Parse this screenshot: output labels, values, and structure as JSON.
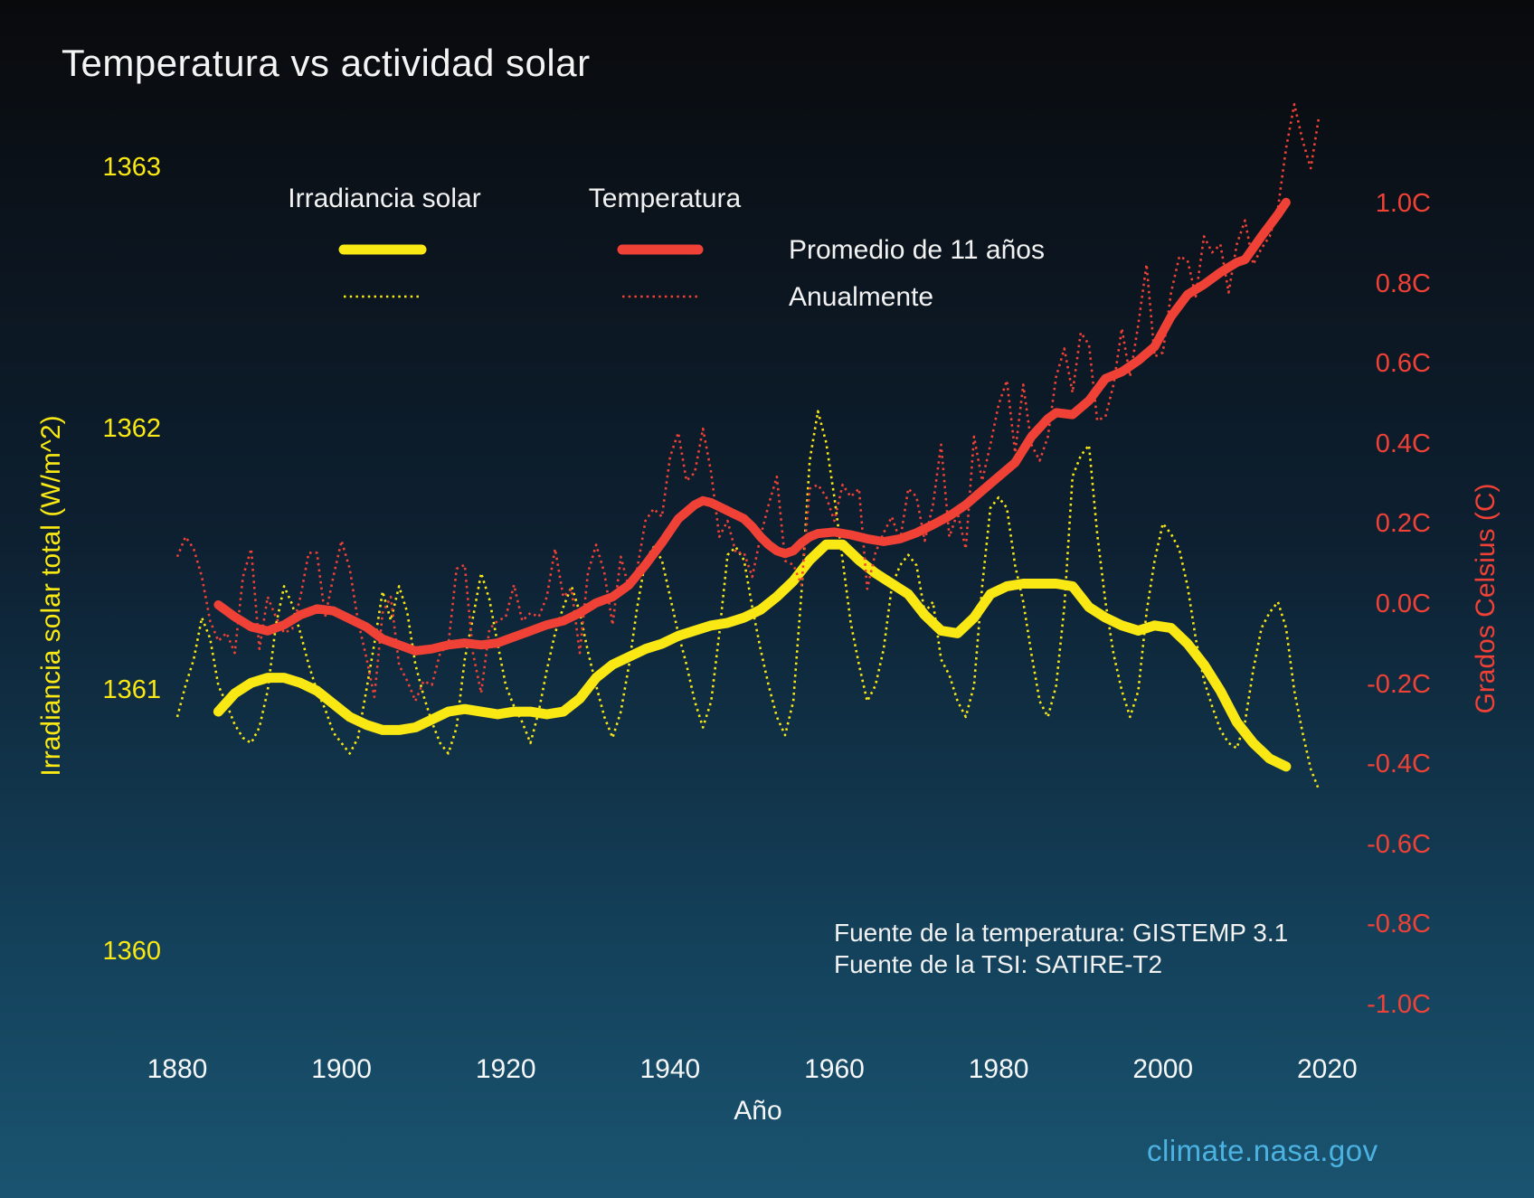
{
  "title": "Temperatura vs actividad solar",
  "legend": {
    "irradiance_header": "Irradiancia solar",
    "temperature_header": "Temperatura",
    "row_smoothed": "Promedio de 11 años",
    "row_annual": "Anualmente"
  },
  "axes": {
    "left_label": "Irradiancia solar total (W/m^2)",
    "right_label": "Grados Celsius (C)",
    "x_label": "Año"
  },
  "sources": {
    "line1": "Fuente de la temperatura: GISTEMP 3.1",
    "line2": "Fuente de la TSI: SATIRE-T2"
  },
  "watermark": "climate.nasa.gov",
  "colors": {
    "yellow": "#f9e814",
    "red": "#ef4136",
    "white": "#f2f2f2",
    "link_blue": "#4cb2e2"
  },
  "chart_data": {
    "type": "line",
    "title": "Temperatura vs actividad solar",
    "xlabel": "Año",
    "ylabel_left": "Irradiancia solar total (W/m^2)",
    "ylabel_right": "Grados Celsius (C)",
    "x_range": [
      1880,
      2020
    ],
    "x_ticks": [
      1880,
      1900,
      1920,
      1940,
      1960,
      1980,
      2000,
      2020
    ],
    "left_axis_ticks": [
      1363,
      1362,
      1361,
      1360
    ],
    "right_axis_ticks": [
      1.0,
      0.8,
      0.6,
      0.4,
      0.2,
      0.0,
      -0.2,
      -0.4,
      -0.6,
      -0.8,
      -1.0
    ],
    "grid": false,
    "legend_position": "top-left",
    "series": [
      {
        "name": "Irradiancia solar — Anualmente",
        "axis": "tsi",
        "style": "dotted",
        "color": "#f9e814",
        "x_start": 1880,
        "values": [
          1360.9,
          1361.02,
          1361.12,
          1361.28,
          1361.2,
          1361.02,
          1360.95,
          1360.87,
          1360.82,
          1360.8,
          1360.86,
          1361.0,
          1361.25,
          1361.4,
          1361.33,
          1361.22,
          1361.1,
          1361.0,
          1360.93,
          1360.84,
          1360.8,
          1360.76,
          1360.82,
          1361.0,
          1361.18,
          1361.38,
          1361.27,
          1361.4,
          1361.3,
          1361.1,
          1360.98,
          1360.88,
          1360.8,
          1360.76,
          1360.86,
          1361.12,
          1361.28,
          1361.45,
          1361.35,
          1361.18,
          1361.02,
          1360.94,
          1360.88,
          1360.8,
          1360.92,
          1361.08,
          1361.22,
          1361.32,
          1361.4,
          1361.3,
          1361.15,
          1361.02,
          1360.9,
          1360.82,
          1360.92,
          1361.1,
          1361.32,
          1361.5,
          1361.55,
          1361.5,
          1361.36,
          1361.22,
          1361.1,
          1360.96,
          1360.86,
          1360.96,
          1361.22,
          1361.52,
          1361.55,
          1361.5,
          1361.32,
          1361.16,
          1361.02,
          1360.9,
          1360.83,
          1360.96,
          1361.38,
          1361.88,
          1362.07,
          1361.95,
          1361.74,
          1361.5,
          1361.26,
          1361.1,
          1360.96,
          1361.02,
          1361.16,
          1361.4,
          1361.48,
          1361.52,
          1361.48,
          1361.3,
          1361.34,
          1361.12,
          1361.06,
          1360.96,
          1360.9,
          1361.02,
          1361.4,
          1361.7,
          1361.74,
          1361.7,
          1361.48,
          1361.34,
          1361.14,
          1360.96,
          1360.9,
          1361.02,
          1361.32,
          1361.82,
          1361.9,
          1361.94,
          1361.6,
          1361.34,
          1361.14,
          1361.0,
          1360.9,
          1361.0,
          1361.3,
          1361.5,
          1361.64,
          1361.6,
          1361.54,
          1361.4,
          1361.2,
          1361.04,
          1360.94,
          1360.85,
          1360.8,
          1360.78,
          1360.88,
          1361.08,
          1361.24,
          1361.3,
          1361.34,
          1361.24,
          1361.0,
          1360.84,
          1360.7,
          1360.62
        ]
      },
      {
        "name": "Irradiancia solar — Promedio de 11 años",
        "axis": "tsi",
        "style": "solid",
        "color": "#f9e814",
        "points": [
          [
            1885,
            1360.92
          ],
          [
            1887,
            1360.99
          ],
          [
            1889,
            1361.03
          ],
          [
            1891,
            1361.05
          ],
          [
            1893,
            1361.05
          ],
          [
            1895,
            1361.03
          ],
          [
            1897,
            1361.0
          ],
          [
            1899,
            1360.95
          ],
          [
            1901,
            1360.9
          ],
          [
            1903,
            1360.87
          ],
          [
            1905,
            1360.85
          ],
          [
            1907,
            1360.85
          ],
          [
            1909,
            1360.86
          ],
          [
            1911,
            1360.89
          ],
          [
            1913,
            1360.92
          ],
          [
            1915,
            1360.93
          ],
          [
            1917,
            1360.92
          ],
          [
            1919,
            1360.91
          ],
          [
            1921,
            1360.92
          ],
          [
            1923,
            1360.92
          ],
          [
            1925,
            1360.91
          ],
          [
            1927,
            1360.92
          ],
          [
            1929,
            1360.97
          ],
          [
            1931,
            1361.05
          ],
          [
            1933,
            1361.1
          ],
          [
            1935,
            1361.13
          ],
          [
            1937,
            1361.16
          ],
          [
            1939,
            1361.18
          ],
          [
            1941,
            1361.21
          ],
          [
            1943,
            1361.23
          ],
          [
            1945,
            1361.25
          ],
          [
            1947,
            1361.26
          ],
          [
            1949,
            1361.28
          ],
          [
            1951,
            1361.31
          ],
          [
            1953,
            1361.36
          ],
          [
            1955,
            1361.42
          ],
          [
            1957,
            1361.5
          ],
          [
            1959,
            1361.56
          ],
          [
            1961,
            1361.56
          ],
          [
            1963,
            1361.5
          ],
          [
            1965,
            1361.45
          ],
          [
            1967,
            1361.41
          ],
          [
            1969,
            1361.37
          ],
          [
            1971,
            1361.29
          ],
          [
            1973,
            1361.23
          ],
          [
            1975,
            1361.22
          ],
          [
            1977,
            1361.28
          ],
          [
            1979,
            1361.37
          ],
          [
            1981,
            1361.4
          ],
          [
            1983,
            1361.41
          ],
          [
            1985,
            1361.41
          ],
          [
            1987,
            1361.41
          ],
          [
            1989,
            1361.4
          ],
          [
            1991,
            1361.32
          ],
          [
            1993,
            1361.28
          ],
          [
            1995,
            1361.25
          ],
          [
            1997,
            1361.23
          ],
          [
            1999,
            1361.25
          ],
          [
            2001,
            1361.24
          ],
          [
            2003,
            1361.18
          ],
          [
            2005,
            1361.1
          ],
          [
            2007,
            1361.0
          ],
          [
            2009,
            1360.88
          ],
          [
            2011,
            1360.8
          ],
          [
            2013,
            1360.74
          ],
          [
            2015,
            1360.71
          ]
        ]
      },
      {
        "name": "Temperatura — Anualmente",
        "axis": "temp",
        "style": "dotted",
        "color": "#ef4136",
        "x_start": 1880,
        "values": [
          0.12,
          0.17,
          0.14,
          0.07,
          -0.04,
          -0.09,
          -0.07,
          -0.12,
          0.07,
          0.14,
          -0.11,
          0.02,
          -0.03,
          -0.07,
          -0.06,
          0.02,
          0.13,
          0.13,
          -0.03,
          0.07,
          0.16,
          0.09,
          -0.04,
          -0.13,
          -0.23,
          -0.02,
          0.02,
          -0.15,
          -0.19,
          -0.24,
          -0.19,
          -0.2,
          -0.12,
          -0.1,
          0.09,
          0.1,
          -0.12,
          -0.22,
          -0.06,
          -0.04,
          -0.03,
          0.05,
          -0.04,
          -0.02,
          -0.03,
          0.02,
          0.14,
          0.02,
          0.04,
          -0.12,
          0.08,
          0.15,
          0.08,
          -0.05,
          0.12,
          0.04,
          0.09,
          0.21,
          0.24,
          0.22,
          0.37,
          0.43,
          0.31,
          0.33,
          0.44,
          0.33,
          0.17,
          0.21,
          0.13,
          0.13,
          0.07,
          0.17,
          0.25,
          0.32,
          0.11,
          0.1,
          0.05,
          0.29,
          0.3,
          0.27,
          0.21,
          0.3,
          0.27,
          0.29,
          0.04,
          0.13,
          0.18,
          0.22,
          0.16,
          0.29,
          0.27,
          0.16,
          0.25,
          0.4,
          0.17,
          0.23,
          0.14,
          0.42,
          0.31,
          0.4,
          0.5,
          0.56,
          0.38,
          0.55,
          0.4,
          0.36,
          0.42,
          0.57,
          0.64,
          0.53,
          0.68,
          0.65,
          0.46,
          0.47,
          0.55,
          0.69,
          0.57,
          0.7,
          0.85,
          0.62,
          0.63,
          0.78,
          0.87,
          0.86,
          0.77,
          0.92,
          0.88,
          0.9,
          0.78,
          0.9,
          0.96,
          0.85,
          0.89,
          0.92,
          0.99,
          1.14,
          1.25,
          1.16,
          1.09,
          1.22
        ]
      },
      {
        "name": "Temperatura — Promedio de 11 años",
        "axis": "temp",
        "style": "solid",
        "color": "#ef4136",
        "points": [
          [
            1885,
            0.0
          ],
          [
            1887,
            -0.03
          ],
          [
            1889,
            -0.055
          ],
          [
            1891,
            -0.065
          ],
          [
            1893,
            -0.05
          ],
          [
            1895,
            -0.025
          ],
          [
            1897,
            -0.01
          ],
          [
            1899,
            -0.015
          ],
          [
            1901,
            -0.035
          ],
          [
            1903,
            -0.055
          ],
          [
            1905,
            -0.085
          ],
          [
            1907,
            -0.1
          ],
          [
            1909,
            -0.115
          ],
          [
            1911,
            -0.11
          ],
          [
            1913,
            -0.1
          ],
          [
            1915,
            -0.095
          ],
          [
            1917,
            -0.1
          ],
          [
            1919,
            -0.095
          ],
          [
            1921,
            -0.08
          ],
          [
            1923,
            -0.065
          ],
          [
            1925,
            -0.05
          ],
          [
            1927,
            -0.04
          ],
          [
            1929,
            -0.02
          ],
          [
            1931,
            0.005
          ],
          [
            1933,
            0.02
          ],
          [
            1935,
            0.05
          ],
          [
            1937,
            0.1
          ],
          [
            1939,
            0.155
          ],
          [
            1941,
            0.215
          ],
          [
            1943,
            0.25
          ],
          [
            1944,
            0.26
          ],
          [
            1945,
            0.255
          ],
          [
            1947,
            0.235
          ],
          [
            1949,
            0.215
          ],
          [
            1950,
            0.195
          ],
          [
            1951,
            0.17
          ],
          [
            1952,
            0.15
          ],
          [
            1953,
            0.135
          ],
          [
            1954,
            0.128
          ],
          [
            1955,
            0.135
          ],
          [
            1956,
            0.155
          ],
          [
            1957,
            0.17
          ],
          [
            1958,
            0.178
          ],
          [
            1960,
            0.182
          ],
          [
            1962,
            0.175
          ],
          [
            1964,
            0.165
          ],
          [
            1966,
            0.158
          ],
          [
            1968,
            0.165
          ],
          [
            1970,
            0.18
          ],
          [
            1972,
            0.2
          ],
          [
            1974,
            0.222
          ],
          [
            1976,
            0.25
          ],
          [
            1978,
            0.285
          ],
          [
            1980,
            0.32
          ],
          [
            1982,
            0.355
          ],
          [
            1984,
            0.42
          ],
          [
            1986,
            0.465
          ],
          [
            1987,
            0.48
          ],
          [
            1989,
            0.475
          ],
          [
            1991,
            0.51
          ],
          [
            1993,
            0.565
          ],
          [
            1995,
            0.582
          ],
          [
            1997,
            0.61
          ],
          [
            1999,
            0.645
          ],
          [
            2001,
            0.72
          ],
          [
            2003,
            0.775
          ],
          [
            2005,
            0.8
          ],
          [
            2007,
            0.83
          ],
          [
            2009,
            0.855
          ],
          [
            2010,
            0.862
          ],
          [
            2012,
            0.92
          ],
          [
            2014,
            0.975
          ],
          [
            2015,
            1.005
          ]
        ]
      }
    ]
  }
}
